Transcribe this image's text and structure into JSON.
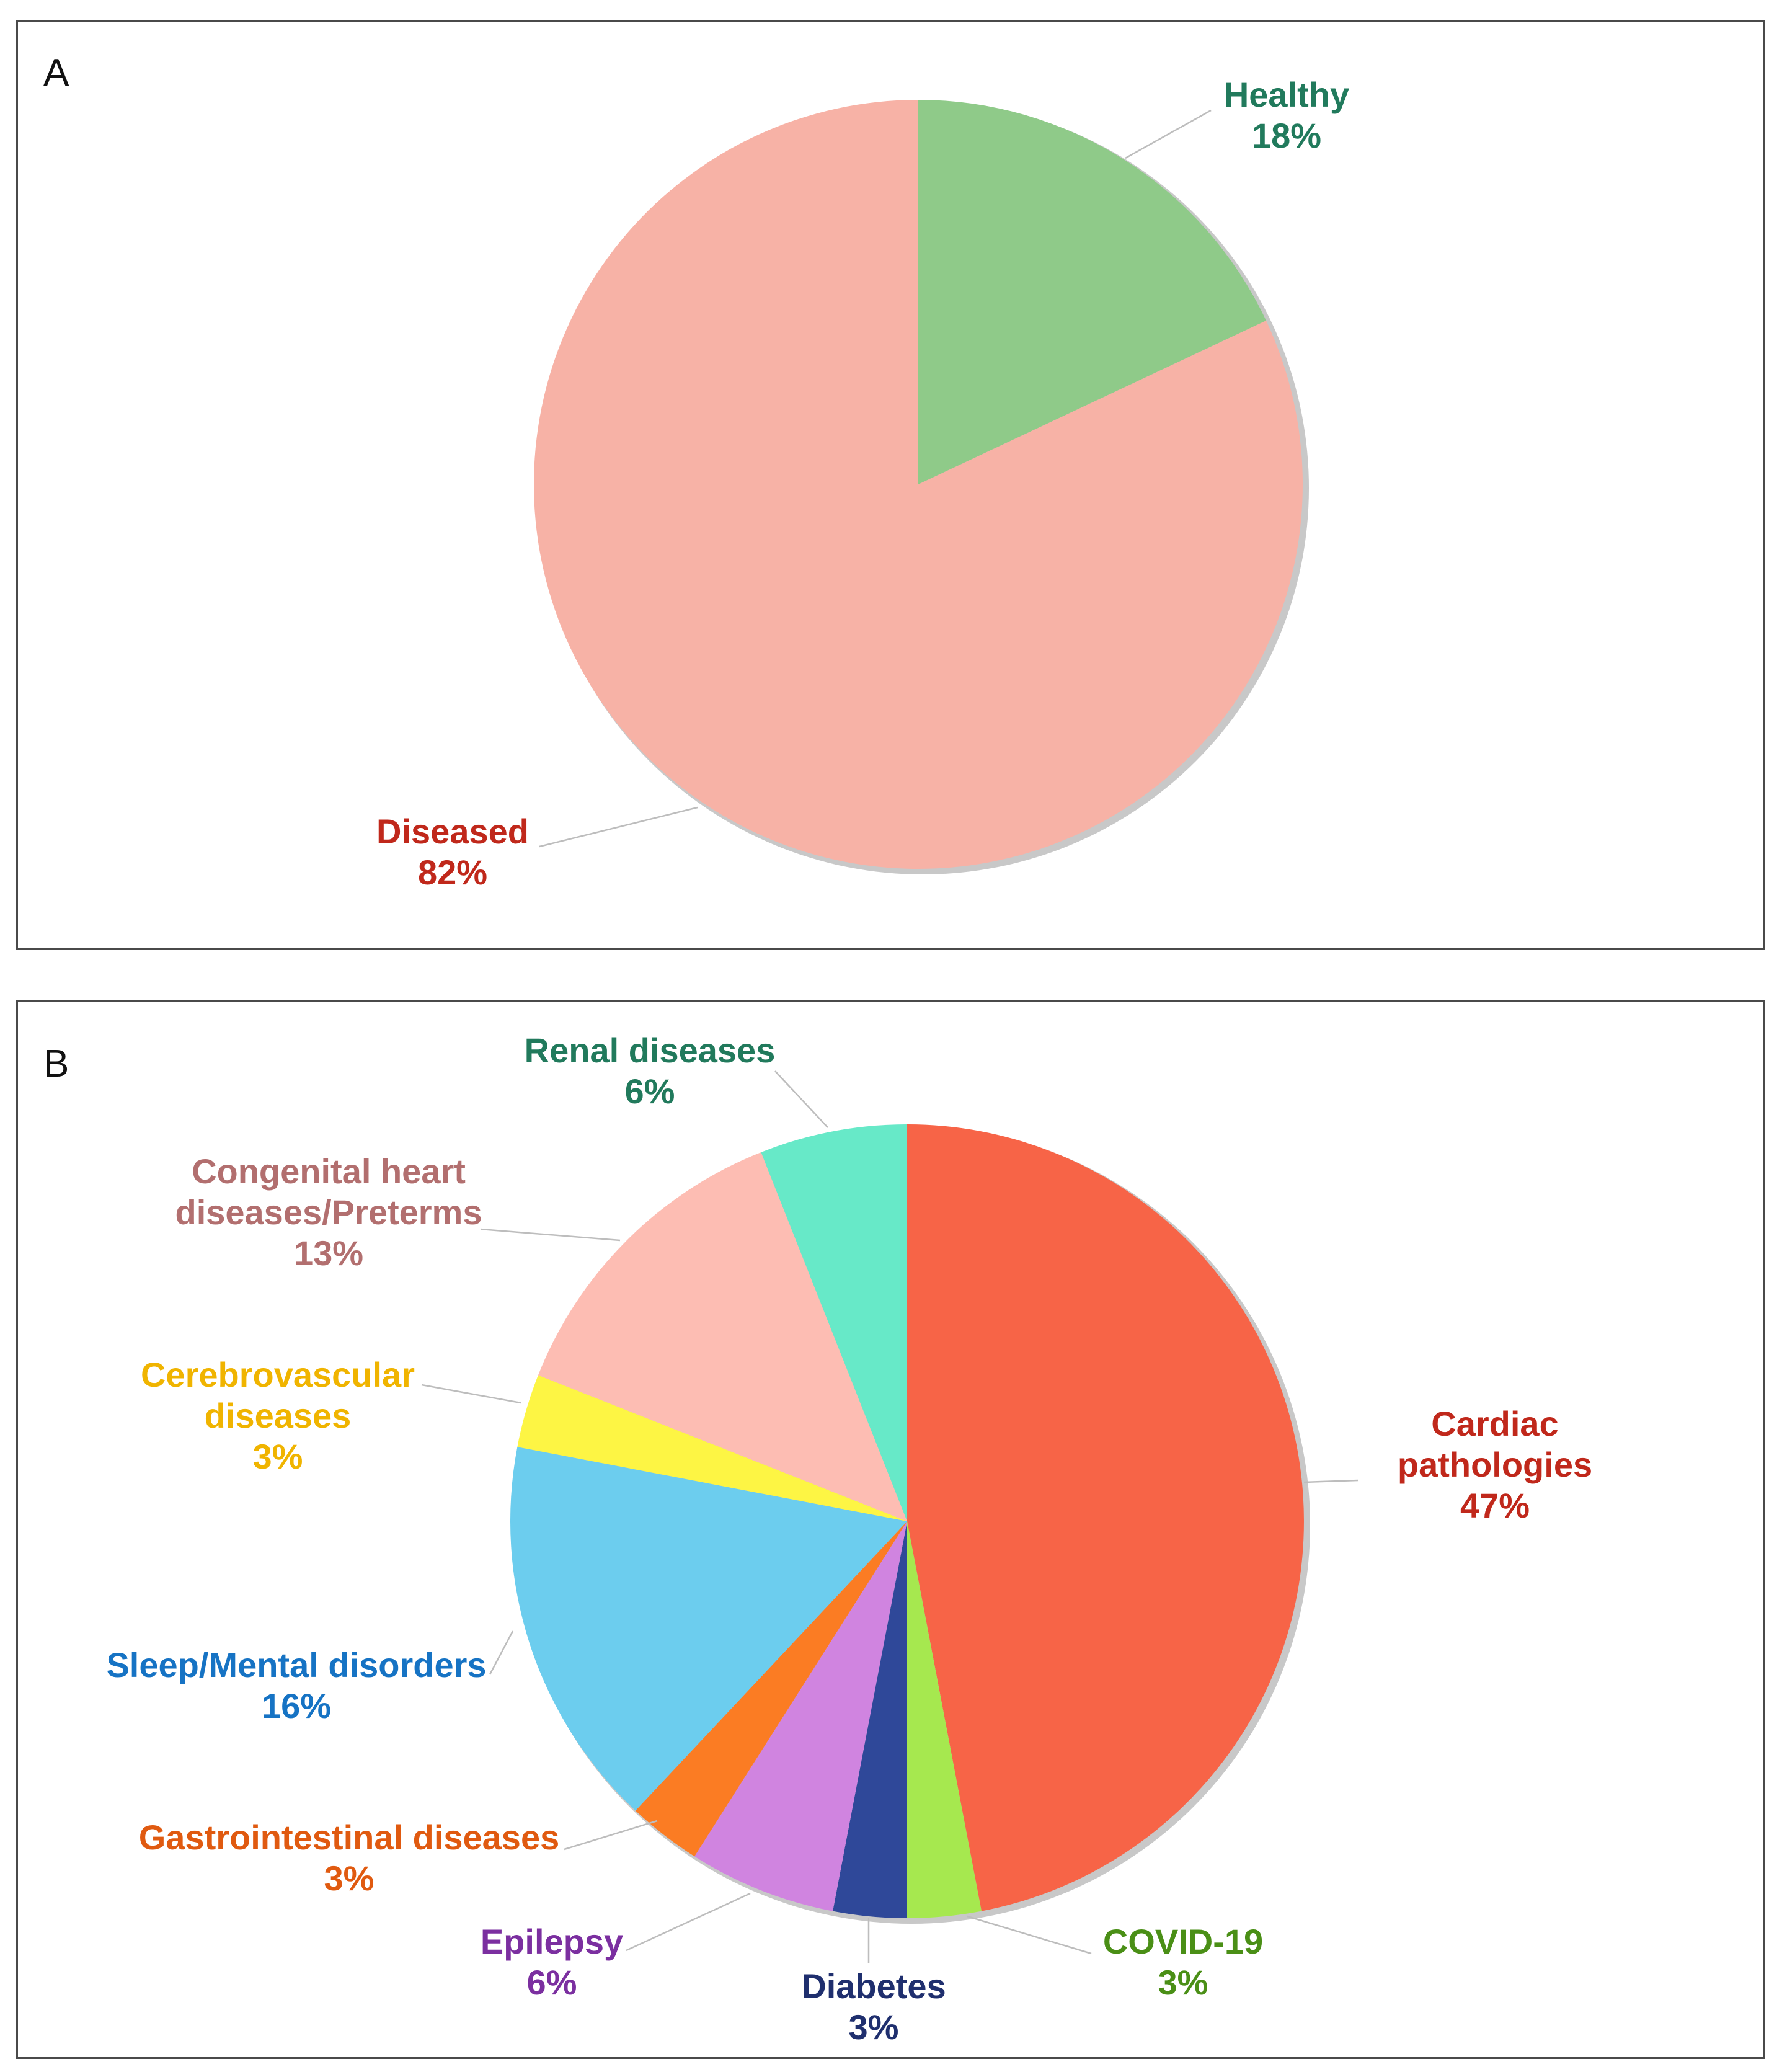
{
  "chart_data": [
    {
      "type": "pie",
      "panel": "A",
      "title": "",
      "slices": [
        {
          "label": "Healthy",
          "value": 18,
          "display": "18%",
          "color": "#8fca89",
          "label_color": "#217a5c"
        },
        {
          "label": "Diseased",
          "value": 82,
          "display": "82%",
          "color": "#f7b2a6",
          "label_color": "#c0281b"
        }
      ]
    },
    {
      "type": "pie",
      "panel": "B",
      "title": "",
      "slices": [
        {
          "label": "Cardiac pathologies",
          "lines": [
            "Cardiac",
            "pathologies"
          ],
          "value": 47,
          "display": "47%",
          "color": "#f76447",
          "label_color": "#c0281b"
        },
        {
          "label": "COVID-19",
          "lines": [
            "COVID-19"
          ],
          "value": 3,
          "display": "3%",
          "color": "#a6e84f",
          "label_color": "#4a8f16"
        },
        {
          "label": "Diabetes",
          "lines": [
            "Diabetes"
          ],
          "value": 3,
          "display": "3%",
          "color": "#2f4899",
          "label_color": "#1f2f6e"
        },
        {
          "label": "Epilepsy",
          "lines": [
            "Epilepsy"
          ],
          "value": 6,
          "display": "6%",
          "color": "#d084e0",
          "label_color": "#7b2fa0"
        },
        {
          "label": "Gastrointestinal diseases",
          "lines": [
            "Gastrointestinal diseases"
          ],
          "value": 3,
          "display": "3%",
          "color": "#fb7c23",
          "label_color": "#e05a10"
        },
        {
          "label": "Sleep/Mental disorders",
          "lines": [
            "Sleep/Mental disorders"
          ],
          "value": 16,
          "display": "16%",
          "color": "#6ccdee",
          "label_color": "#1673c4"
        },
        {
          "label": "Cerebrovascular diseases",
          "lines": [
            "Cerebrovascular",
            "diseases"
          ],
          "value": 3,
          "display": "3%",
          "color": "#fdf544",
          "label_color": "#f0b400"
        },
        {
          "label": "Congenital heart diseases/Preterms",
          "lines": [
            "Congenital heart",
            "diseases/Preterms"
          ],
          "value": 13,
          "display": "13%",
          "color": "#fdbdb3",
          "label_color": "#b26f6f"
        },
        {
          "label": "Renal diseases",
          "lines": [
            "Renal diseases"
          ],
          "value": 6,
          "display": "6%",
          "color": "#67e9c8",
          "label_color": "#217a5c"
        }
      ]
    }
  ],
  "panels": {
    "a": {
      "letter": "A"
    },
    "b": {
      "letter": "B"
    }
  },
  "colors": {
    "border": "#4a4a4a",
    "leader": "#bdbdbd",
    "pie_shadow": "#c8c8c8"
  }
}
